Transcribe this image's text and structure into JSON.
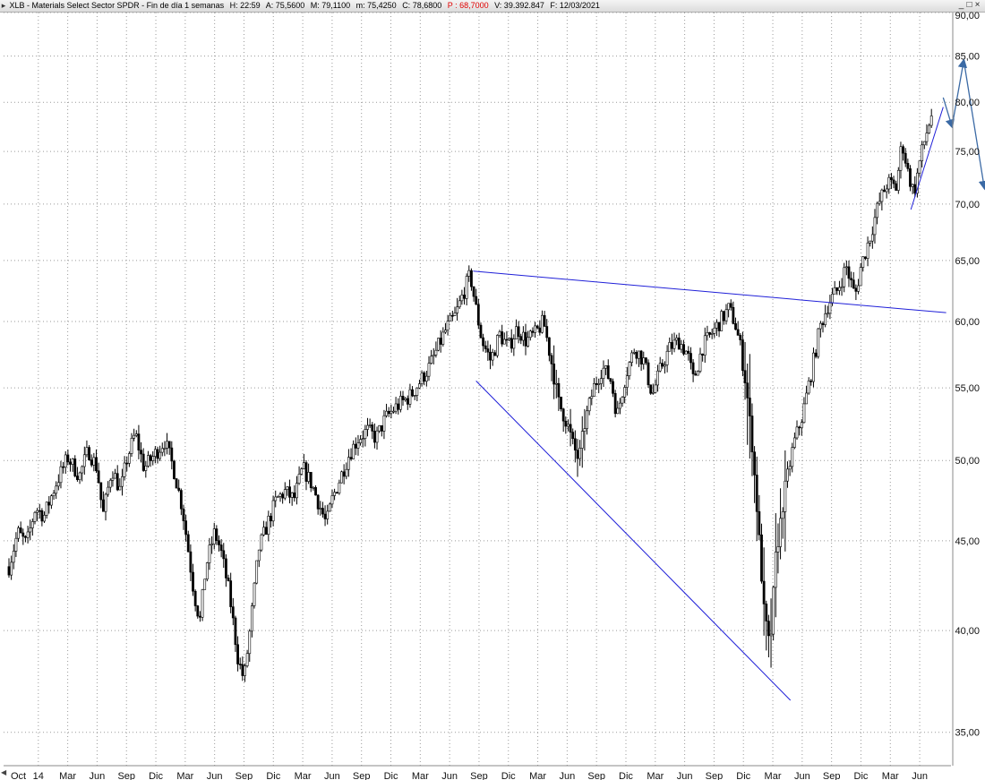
{
  "window": {
    "title_parts": [
      {
        "key": "symbol",
        "text": "XLB - Materials Select Sector SPDR - Fin de día 1 semanas"
      },
      {
        "key": "h",
        "text": "H: 22:59"
      },
      {
        "key": "a",
        "text": "A: 75,5600"
      },
      {
        "key": "m",
        "text": "M: 79,1100"
      },
      {
        "key": "mi",
        "text": "m: 75,4250"
      },
      {
        "key": "c",
        "text": "C: 78,6800"
      },
      {
        "key": "p",
        "text": "P : 68,7000"
      },
      {
        "key": "v",
        "text": "V: 39.392.847"
      },
      {
        "key": "f",
        "text": "F: 12/03/2021"
      }
    ],
    "buttons": {
      "minimize": "_",
      "restore": "□",
      "close": "×"
    }
  },
  "chart_data": {
    "type": "candlestick",
    "scale": "log",
    "grid": true,
    "ylim": [
      33.5,
      90
    ],
    "y_ticks": [
      {
        "value": 35,
        "label": "35,00"
      },
      {
        "value": 40,
        "label": "40,00"
      },
      {
        "value": 45,
        "label": "45,00"
      },
      {
        "value": 50,
        "label": "50,00"
      },
      {
        "value": 55,
        "label": "55,00"
      },
      {
        "value": 60,
        "label": "60,00"
      },
      {
        "value": 65,
        "label": "65,00"
      },
      {
        "value": 70,
        "label": "70,00"
      },
      {
        "value": 75,
        "label": "75,00"
      },
      {
        "value": 80,
        "label": "80,00"
      },
      {
        "value": 85,
        "label": "85,00"
      },
      {
        "value": 90,
        "label": "90,00"
      }
    ],
    "x_ticks": [
      "Oct",
      "14",
      "Mar",
      "Jun",
      "Sep",
      "Dic",
      "Mar",
      "Jun",
      "Sep",
      "Dic",
      "Mar",
      "Jun",
      "Sep",
      "Dic",
      "Mar",
      "Jun",
      "Sep",
      "Dic",
      "Mar",
      "Jun",
      "Sep",
      "Dic",
      "Mar",
      "Jun",
      "Sep",
      "Dic",
      "Mar",
      "Jun",
      "Sep",
      "Dic",
      "Mar",
      "Jun"
    ],
    "x_range": [
      "2013-10",
      "2021-06"
    ],
    "last_close": 78.68,
    "price_path": [
      [
        0.0,
        43.5
      ],
      [
        0.3,
        45.5
      ],
      [
        0.6,
        44.8
      ],
      [
        0.9,
        47.0
      ],
      [
        1.2,
        46.5
      ],
      [
        1.6,
        48.5
      ],
      [
        2.0,
        50.2
      ],
      [
        2.4,
        49.0
      ],
      [
        2.7,
        50.7
      ],
      [
        3.0,
        49.5
      ],
      [
        3.2,
        46.5
      ],
      [
        3.5,
        49.5
      ],
      [
        3.8,
        48.0
      ],
      [
        4.0,
        50.0
      ],
      [
        4.3,
        51.8
      ],
      [
        4.6,
        49.5
      ],
      [
        5.0,
        50.5
      ],
      [
        5.3,
        51.3
      ],
      [
        5.6,
        49.5
      ],
      [
        5.9,
        47.0
      ],
      [
        6.1,
        44.5
      ],
      [
        6.3,
        42.0
      ],
      [
        6.5,
        40.5
      ],
      [
        6.7,
        43.5
      ],
      [
        7.0,
        45.5
      ],
      [
        7.2,
        44.5
      ],
      [
        7.5,
        42.0
      ],
      [
        7.8,
        38.5
      ],
      [
        8.0,
        37.5
      ],
      [
        8.2,
        40.0
      ],
      [
        8.5,
        44.5
      ],
      [
        8.8,
        46.0
      ],
      [
        9.1,
        47.5
      ],
      [
        9.4,
        48.0
      ],
      [
        9.7,
        47.5
      ],
      [
        10.0,
        49.5
      ],
      [
        10.3,
        48.5
      ],
      [
        10.6,
        47.0
      ],
      [
        10.8,
        46.0
      ],
      [
        11.0,
        47.5
      ],
      [
        11.3,
        49.0
      ],
      [
        11.6,
        50.5
      ],
      [
        11.9,
        51.5
      ],
      [
        12.2,
        52.0
      ],
      [
        12.5,
        51.5
      ],
      [
        12.8,
        52.8
      ],
      [
        13.1,
        53.5
      ],
      [
        13.4,
        54.0
      ],
      [
        13.7,
        54.5
      ],
      [
        14.0,
        55.5
      ],
      [
        14.3,
        56.5
      ],
      [
        14.6,
        58.0
      ],
      [
        14.9,
        59.5
      ],
      [
        15.2,
        60.5
      ],
      [
        15.5,
        62.5
      ],
      [
        15.7,
        63.8
      ],
      [
        15.9,
        61.0
      ],
      [
        16.1,
        58.5
      ],
      [
        16.4,
        57.0
      ],
      [
        16.7,
        59.0
      ],
      [
        17.0,
        58.0
      ],
      [
        17.3,
        59.5
      ],
      [
        17.6,
        58.5
      ],
      [
        17.9,
        59.0
      ],
      [
        18.2,
        60.0
      ],
      [
        18.5,
        56.5
      ],
      [
        18.7,
        54.0
      ],
      [
        19.0,
        52.5
      ],
      [
        19.2,
        51.0
      ],
      [
        19.4,
        50.0
      ],
      [
        19.6,
        52.5
      ],
      [
        19.9,
        55.0
      ],
      [
        20.2,
        56.5
      ],
      [
        20.5,
        55.5
      ],
      [
        20.7,
        53.0
      ],
      [
        21.0,
        56.0
      ],
      [
        21.3,
        58.0
      ],
      [
        21.6,
        57.0
      ],
      [
        21.9,
        54.5
      ],
      [
        22.2,
        56.5
      ],
      [
        22.5,
        58.0
      ],
      [
        22.8,
        58.5
      ],
      [
        23.1,
        57.5
      ],
      [
        23.3,
        55.5
      ],
      [
        23.6,
        58.0
      ],
      [
        23.9,
        59.0
      ],
      [
        24.2,
        60.0
      ],
      [
        24.5,
        61.0
      ],
      [
        24.7,
        60.0
      ],
      [
        24.9,
        58.0
      ],
      [
        25.1,
        55.0
      ],
      [
        25.3,
        51.0
      ],
      [
        25.5,
        46.0
      ],
      [
        25.7,
        41.0
      ],
      [
        25.9,
        39.0
      ],
      [
        26.1,
        44.0
      ],
      [
        26.4,
        48.0
      ],
      [
        26.7,
        51.0
      ],
      [
        27.0,
        53.0
      ],
      [
        27.3,
        56.0
      ],
      [
        27.6,
        59.5
      ],
      [
        27.9,
        61.5
      ],
      [
        28.2,
        62.5
      ],
      [
        28.5,
        64.5
      ],
      [
        28.8,
        62.0
      ],
      [
        29.0,
        64.5
      ],
      [
        29.3,
        67.0
      ],
      [
        29.6,
        70.0
      ],
      [
        29.9,
        72.0
      ],
      [
        30.2,
        71.5
      ],
      [
        30.4,
        76.0
      ],
      [
        30.6,
        73.0
      ],
      [
        30.8,
        71.0
      ],
      [
        31.0,
        74.0
      ],
      [
        31.2,
        76.5
      ],
      [
        31.4,
        78.7
      ]
    ],
    "candle_count": 392,
    "annotations": [
      {
        "type": "trendline",
        "color": "#1f1fd8",
        "from": [
          15.8,
          64.1
        ],
        "to": [
          31.9,
          60.7
        ]
      },
      {
        "type": "trendline",
        "color": "#1f1fd8",
        "from": [
          15.9,
          55.5
        ],
        "to": [
          26.6,
          36.5
        ]
      },
      {
        "type": "trendline",
        "color": "#1f1fd8",
        "from": [
          30.7,
          69.5
        ],
        "to": [
          31.8,
          79.5
        ]
      },
      {
        "type": "projection-arrows",
        "color": "#3b6aa5",
        "points": [
          [
            31.8,
            80.5
          ],
          [
            32.1,
            77.5
          ],
          [
            32.5,
            84.5
          ],
          [
            33.2,
            71.5
          ]
        ]
      }
    ]
  }
}
